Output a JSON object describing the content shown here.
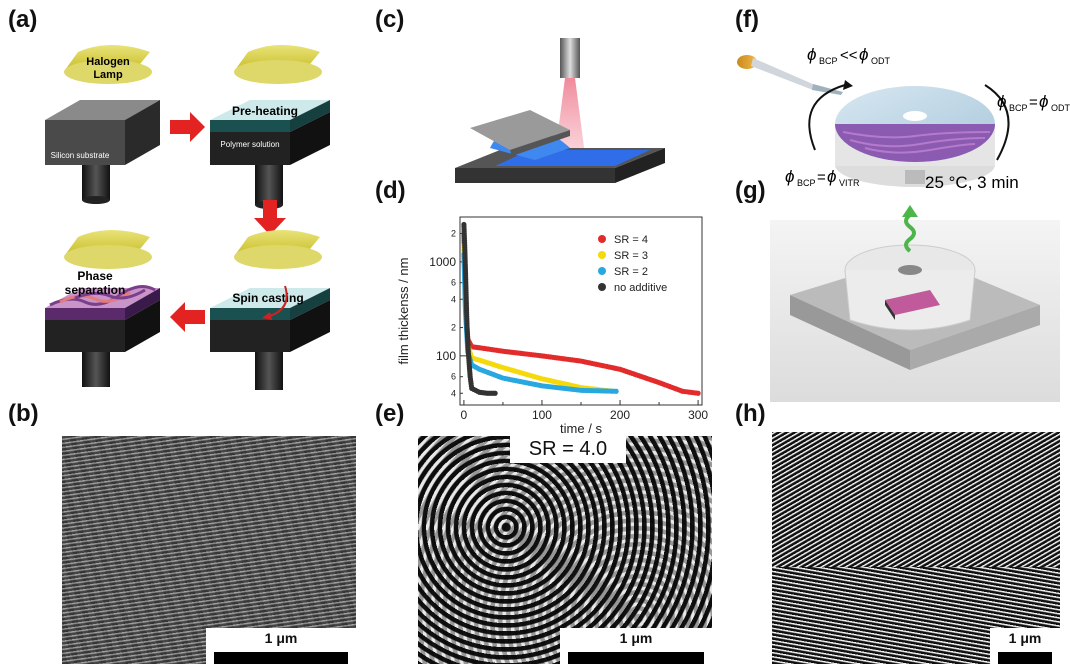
{
  "panels": {
    "a": "(a)",
    "b": "(b)",
    "c": "(c)",
    "d": "(d)",
    "e": "(e)",
    "f": "(f)",
    "g": "(g)",
    "h": "(h)"
  },
  "panel_a": {
    "lamp_label_line1": "Halogen",
    "lamp_label_line2": "Lamp",
    "silicon": "Silicon substrate",
    "preheat": "Pre-heating",
    "polymer": "Polymer solution",
    "spin": "Spin casting",
    "phase_line1": "Phase",
    "phase_line2": "separation"
  },
  "panel_f": {
    "phi_bcp_ll": "ϕ",
    "bcp_sub": "BCP",
    "ll": "<<",
    "odt_sub": "ODT",
    "eq": "=",
    "vitr_sub": "VITR",
    "condition": "25 °C, 3 min"
  },
  "scale_bars": {
    "b": "1 μm",
    "e": "1 μm",
    "h": "1 μm"
  },
  "panel_e_label": "SR = 4.0",
  "colors": {
    "sr4": "#e32b2b",
    "sr3": "#f5d90a",
    "sr2": "#29a8e0",
    "no_additive": "#333333"
  },
  "chart_data": {
    "type": "scatter",
    "xlabel": "time / s",
    "ylabel": "film thickenss / nm",
    "xlim": [
      -5,
      305
    ],
    "ylim": [
      30,
      3000
    ],
    "yscale": "log",
    "x_ticks": [
      0,
      100,
      200,
      300
    ],
    "y_major_ticks": [
      100,
      1000
    ],
    "y_minor_labels": [
      {
        "value": 40,
        "label": "4"
      },
      {
        "value": 60,
        "label": "6"
      },
      {
        "value": 200,
        "label": "2"
      },
      {
        "value": 400,
        "label": "4"
      },
      {
        "value": 600,
        "label": "6"
      },
      {
        "value": 2000,
        "label": "2"
      }
    ],
    "legend": [
      "SR = 4",
      "SR = 3",
      "SR = 2",
      "no additive"
    ],
    "legend_position": "top-right",
    "series": [
      {
        "name": "SR = 4",
        "color": "#e32b2b",
        "x": [
          0,
          2,
          5,
          10,
          20,
          50,
          100,
          150,
          200,
          250,
          280,
          300
        ],
        "y": [
          2000,
          400,
          150,
          125,
          122,
          112,
          100,
          88,
          72,
          52,
          42,
          40
        ]
      },
      {
        "name": "SR = 3",
        "color": "#f5d90a",
        "x": [
          0,
          2,
          5,
          10,
          20,
          50,
          100,
          150,
          190
        ],
        "y": [
          1500,
          350,
          130,
          95,
          90,
          75,
          57,
          46,
          42
        ]
      },
      {
        "name": "SR = 2",
        "color": "#29a8e0",
        "x": [
          0,
          2,
          5,
          10,
          20,
          50,
          100,
          150,
          195
        ],
        "y": [
          1200,
          300,
          110,
          80,
          72,
          58,
          48,
          43,
          42
        ]
      },
      {
        "name": "no additive",
        "color": "#333333",
        "x": [
          0,
          1,
          2,
          3,
          4,
          6,
          8,
          10,
          20,
          30,
          40
        ],
        "y": [
          2500,
          1500,
          800,
          400,
          200,
          100,
          60,
          45,
          41,
          40,
          40
        ]
      }
    ]
  }
}
